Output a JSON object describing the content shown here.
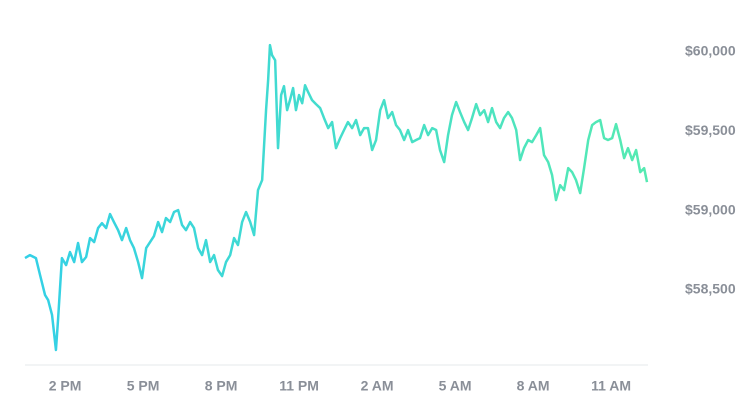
{
  "chart_data": {
    "type": "line",
    "x": [
      12.46,
      12.65,
      12.88,
      13.04,
      13.23,
      13.35,
      13.5,
      13.65,
      13.73,
      13.88,
      14.04,
      14.19,
      14.35,
      14.5,
      14.65,
      14.81,
      14.96,
      15.12,
      15.27,
      15.42,
      15.58,
      15.73,
      15.88,
      16.04,
      16.19,
      16.35,
      16.5,
      16.65,
      16.81,
      16.96,
      17.12,
      17.27,
      17.42,
      17.58,
      17.73,
      17.88,
      18.04,
      18.19,
      18.35,
      18.5,
      18.65,
      18.81,
      18.96,
      19.12,
      19.27,
      19.42,
      19.58,
      19.73,
      19.88,
      20.04,
      20.19,
      20.35,
      20.5,
      20.65,
      20.81,
      20.96,
      21.12,
      21.27,
      21.42,
      21.58,
      21.73,
      21.81,
      21.88,
      21.96,
      22.08,
      22.19,
      22.31,
      22.42,
      22.54,
      22.65,
      22.77,
      22.88,
      23,
      23.12,
      23.23,
      23.35,
      23.5,
      23.65,
      23.81,
      23.96,
      24.12,
      24.27,
      24.42,
      24.58,
      24.73,
      24.88,
      25.04,
      25.19,
      25.35,
      25.5,
      25.65,
      25.81,
      25.96,
      26.12,
      26.27,
      26.42,
      26.58,
      26.73,
      26.88,
      27.04,
      27.19,
      27.35,
      27.5,
      27.65,
      27.81,
      27.96,
      28.12,
      28.27,
      28.42,
      28.58,
      28.73,
      28.88,
      29.04,
      29.19,
      29.35,
      29.5,
      29.65,
      29.81,
      29.96,
      30.12,
      30.27,
      30.42,
      30.58,
      30.73,
      30.88,
      31.04,
      31.19,
      31.35,
      31.5,
      31.65,
      31.81,
      31.96,
      32.12,
      32.27,
      32.42,
      32.58,
      32.73,
      32.88,
      33.04,
      33.19,
      33.35,
      33.5,
      33.65,
      33.81,
      33.96,
      34.12,
      34.27,
      34.42,
      34.58,
      34.73,
      34.88,
      35.04,
      35.19,
      35.35,
      35.5,
      35.65,
      35.81,
      35.96,
      36.12,
      36.27,
      36.38
    ],
    "values": [
      58701,
      58720,
      58701,
      58594,
      58469,
      58437,
      58343,
      58123,
      58311,
      58701,
      58657,
      58739,
      58676,
      58796,
      58676,
      58708,
      58827,
      58802,
      58890,
      58921,
      58890,
      58978,
      58928,
      58877,
      58814,
      58890,
      58814,
      58764,
      58676,
      58575,
      58764,
      58802,
      58840,
      58928,
      58865,
      58953,
      58928,
      58991,
      59003,
      58909,
      58877,
      58928,
      58890,
      58764,
      58720,
      58814,
      58676,
      58720,
      58626,
      58588,
      58676,
      58720,
      58827,
      58783,
      58928,
      58991,
      58928,
      58846,
      59129,
      59192,
      59632,
      59821,
      60041,
      59978,
      59946,
      59393,
      59727,
      59783,
      59632,
      59695,
      59771,
      59632,
      59727,
      59676,
      59789,
      59745,
      59695,
      59670,
      59645,
      59582,
      59519,
      59557,
      59393,
      59456,
      59507,
      59557,
      59519,
      59570,
      59475,
      59519,
      59519,
      59381,
      59444,
      59632,
      59695,
      59582,
      59620,
      59538,
      59507,
      59444,
      59507,
      59431,
      59444,
      59456,
      59538,
      59475,
      59519,
      59507,
      59381,
      59305,
      59475,
      59601,
      59683,
      59620,
      59557,
      59507,
      59582,
      59670,
      59601,
      59632,
      59557,
      59645,
      59557,
      59519,
      59582,
      59620,
      59582,
      59507,
      59318,
      59393,
      59444,
      59431,
      59475,
      59519,
      59349,
      59305,
      59223,
      59066,
      59160,
      59129,
      59267,
      59242,
      59192,
      59110,
      59267,
      59444,
      59538,
      59557,
      59570,
      59456,
      59444,
      59456,
      59544,
      59444,
      59330,
      59393,
      59318,
      59381,
      59242,
      59267,
      59179
    ],
    "gradient": [
      "#33d0e6",
      "#55eab2"
    ],
    "xlim": [
      12.46,
      36.38
    ],
    "xticks": [
      {
        "value": 14,
        "label": "2 PM"
      },
      {
        "value": 17,
        "label": "5 PM"
      },
      {
        "value": 20,
        "label": "8 PM"
      },
      {
        "value": 23,
        "label": "11 PM"
      },
      {
        "value": 26,
        "label": "2 AM"
      },
      {
        "value": 29,
        "label": "5 AM"
      },
      {
        "value": 32,
        "label": "8 AM"
      },
      {
        "value": 35,
        "label": "11 AM"
      }
    ],
    "ylim": [
      58000,
      60300
    ],
    "yticks": [
      {
        "value": 58500,
        "label": "$58,500"
      },
      {
        "value": 59000,
        "label": "$59,000"
      },
      {
        "value": 59500,
        "label": "$59,500"
      },
      {
        "value": 60000,
        "label": "$60,000"
      }
    ],
    "grid": false
  }
}
